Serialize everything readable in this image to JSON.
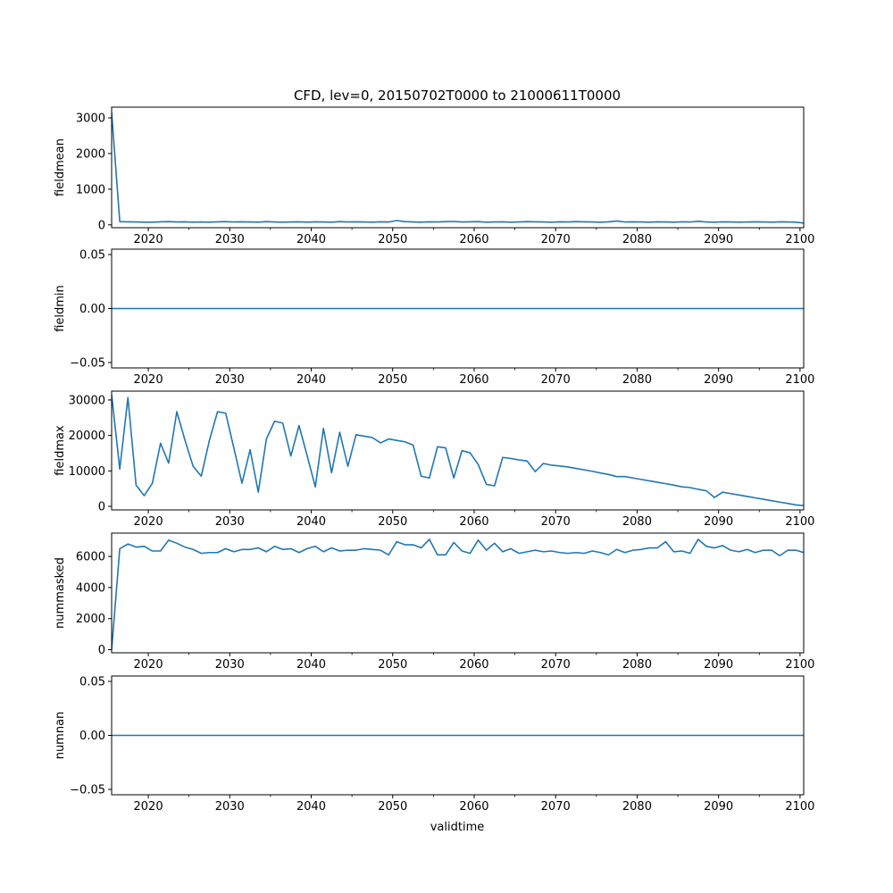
{
  "chart_data": {
    "type": "line",
    "title": "CFD, lev=0, 20150702T0000 to 21000611T0000",
    "xlabel": "validtime",
    "xlim": [
      2015.5,
      2100.45
    ],
    "xticks": [
      2020,
      2030,
      2040,
      2050,
      2060,
      2070,
      2080,
      2090,
      2100
    ],
    "xtick_labels": [
      "2020",
      "2030",
      "2040",
      "2050",
      "2060",
      "2070",
      "2080",
      "2090",
      "2100"
    ],
    "line_color": "#1f77b4",
    "grid": false,
    "x": [
      2015.5,
      2016.5,
      2017.5,
      2018.5,
      2019.5,
      2020.5,
      2021.5,
      2022.5,
      2023.5,
      2024.5,
      2025.5,
      2026.5,
      2027.5,
      2028.5,
      2029.5,
      2030.5,
      2031.5,
      2032.5,
      2033.5,
      2034.5,
      2035.5,
      2036.5,
      2037.5,
      2038.5,
      2039.5,
      2040.5,
      2041.5,
      2042.5,
      2043.5,
      2044.5,
      2045.5,
      2046.5,
      2047.5,
      2048.5,
      2049.5,
      2050.5,
      2051.5,
      2052.5,
      2053.5,
      2054.5,
      2055.5,
      2056.5,
      2057.5,
      2058.5,
      2059.5,
      2060.5,
      2061.5,
      2062.5,
      2063.5,
      2064.5,
      2065.5,
      2066.5,
      2067.5,
      2068.5,
      2069.5,
      2070.5,
      2071.5,
      2072.5,
      2073.5,
      2074.5,
      2075.5,
      2076.5,
      2077.5,
      2078.5,
      2079.5,
      2080.5,
      2081.5,
      2082.5,
      2083.5,
      2084.5,
      2085.5,
      2086.5,
      2087.5,
      2088.5,
      2089.5,
      2090.5,
      2091.5,
      2092.5,
      2093.5,
      2094.5,
      2095.5,
      2096.5,
      2097.5,
      2098.5,
      2099.5,
      2100.45
    ],
    "panels": [
      {
        "ylabel": "fieldmean",
        "ylim": [
          -80,
          3300
        ],
        "yticks": [
          0,
          1000,
          2000,
          3000
        ],
        "ytick_labels": [
          "0",
          "1000",
          "2000",
          "3000"
        ],
        "values": [
          3150,
          90,
          85,
          80,
          75,
          75,
          85,
          90,
          80,
          85,
          75,
          80,
          75,
          85,
          90,
          80,
          85,
          80,
          75,
          90,
          80,
          75,
          80,
          85,
          75,
          85,
          80,
          75,
          90,
          80,
          85,
          80,
          75,
          85,
          80,
          120,
          90,
          80,
          75,
          85,
          80,
          90,
          95,
          80,
          85,
          90,
          75,
          80,
          85,
          75,
          80,
          90,
          85,
          80,
          75,
          85,
          80,
          90,
          85,
          80,
          75,
          85,
          110,
          80,
          85,
          80,
          75,
          85,
          80,
          75,
          85,
          80,
          100,
          80,
          75,
          85,
          80,
          75,
          80,
          85,
          80,
          75,
          85,
          80,
          75,
          50
        ]
      },
      {
        "ylabel": "fieldmin",
        "ylim": [
          -0.055,
          0.055
        ],
        "yticks": [
          -0.05,
          0.0,
          0.05
        ],
        "ytick_labels": [
          "−0.05",
          "0.00",
          "0.05"
        ],
        "values": [
          0,
          0,
          0,
          0,
          0,
          0,
          0,
          0,
          0,
          0,
          0,
          0,
          0,
          0,
          0,
          0,
          0,
          0,
          0,
          0,
          0,
          0,
          0,
          0,
          0,
          0,
          0,
          0,
          0,
          0,
          0,
          0,
          0,
          0,
          0,
          0,
          0,
          0,
          0,
          0,
          0,
          0,
          0,
          0,
          0,
          0,
          0,
          0,
          0,
          0,
          0,
          0,
          0,
          0,
          0,
          0,
          0,
          0,
          0,
          0,
          0,
          0,
          0,
          0,
          0,
          0,
          0,
          0,
          0,
          0,
          0,
          0,
          0,
          0,
          0,
          0,
          0,
          0,
          0,
          0,
          0,
          0,
          0,
          0,
          0,
          0
        ]
      },
      {
        "ylabel": "fieldmax",
        "ylim": [
          -1000,
          32500
        ],
        "yticks": [
          0,
          10000,
          20000,
          30000
        ],
        "ytick_labels": [
          "0",
          "10000",
          "20000",
          "30000"
        ],
        "values": [
          31500,
          10500,
          30700,
          6000,
          3000,
          6500,
          17800,
          12200,
          26700,
          18700,
          11300,
          8500,
          18600,
          26700,
          26300,
          16500,
          6500,
          16000,
          4000,
          19000,
          24000,
          23500,
          14200,
          22800,
          14300,
          5500,
          22000,
          9500,
          20900,
          11300,
          20200,
          19800,
          19400,
          17900,
          19000,
          18600,
          18200,
          17300,
          8500,
          8000,
          16800,
          16500,
          8000,
          15700,
          15100,
          11800,
          6200,
          5800,
          13800,
          13500,
          13100,
          12800,
          9800,
          12100,
          11600,
          11400,
          11100,
          10700,
          10300,
          9900,
          9400,
          9000,
          8400,
          8400,
          8000,
          7600,
          7200,
          6800,
          6400,
          6000,
          5500,
          5300,
          4800,
          4400,
          2500,
          4000,
          3600,
          3200,
          2800,
          2400,
          2000,
          1600,
          1200,
          800,
          400,
          200
        ]
      },
      {
        "ylabel": "nummasked",
        "ylim": [
          -200,
          7500
        ],
        "yticks": [
          0,
          2000,
          4000,
          6000
        ],
        "ytick_labels": [
          "0",
          "2000",
          "4000",
          "6000"
        ],
        "values": [
          0,
          6500,
          6800,
          6600,
          6650,
          6350,
          6350,
          7050,
          6850,
          6600,
          6450,
          6200,
          6250,
          6250,
          6500,
          6300,
          6450,
          6450,
          6550,
          6300,
          6650,
          6450,
          6500,
          6250,
          6500,
          6650,
          6300,
          6550,
          6350,
          6400,
          6400,
          6500,
          6450,
          6400,
          6100,
          6950,
          6750,
          6750,
          6550,
          7100,
          6100,
          6100,
          6900,
          6350,
          6200,
          7050,
          6400,
          6850,
          6300,
          6500,
          6200,
          6300,
          6400,
          6300,
          6350,
          6250,
          6200,
          6250,
          6200,
          6350,
          6250,
          6100,
          6450,
          6250,
          6400,
          6450,
          6550,
          6550,
          6950,
          6300,
          6350,
          6200,
          7100,
          6650,
          6550,
          6700,
          6400,
          6300,
          6450,
          6250,
          6400,
          6400,
          6050,
          6400,
          6400,
          6250
        ]
      },
      {
        "ylabel": "numnan",
        "ylim": [
          -0.055,
          0.055
        ],
        "yticks": [
          -0.05,
          0.0,
          0.05
        ],
        "ytick_labels": [
          "−0.05",
          "0.00",
          "0.05"
        ],
        "values": [
          0,
          0,
          0,
          0,
          0,
          0,
          0,
          0,
          0,
          0,
          0,
          0,
          0,
          0,
          0,
          0,
          0,
          0,
          0,
          0,
          0,
          0,
          0,
          0,
          0,
          0,
          0,
          0,
          0,
          0,
          0,
          0,
          0,
          0,
          0,
          0,
          0,
          0,
          0,
          0,
          0,
          0,
          0,
          0,
          0,
          0,
          0,
          0,
          0,
          0,
          0,
          0,
          0,
          0,
          0,
          0,
          0,
          0,
          0,
          0,
          0,
          0,
          0,
          0,
          0,
          0,
          0,
          0,
          0,
          0,
          0,
          0,
          0,
          0,
          0,
          0,
          0,
          0,
          0,
          0,
          0,
          0,
          0,
          0,
          0,
          0
        ]
      }
    ]
  }
}
